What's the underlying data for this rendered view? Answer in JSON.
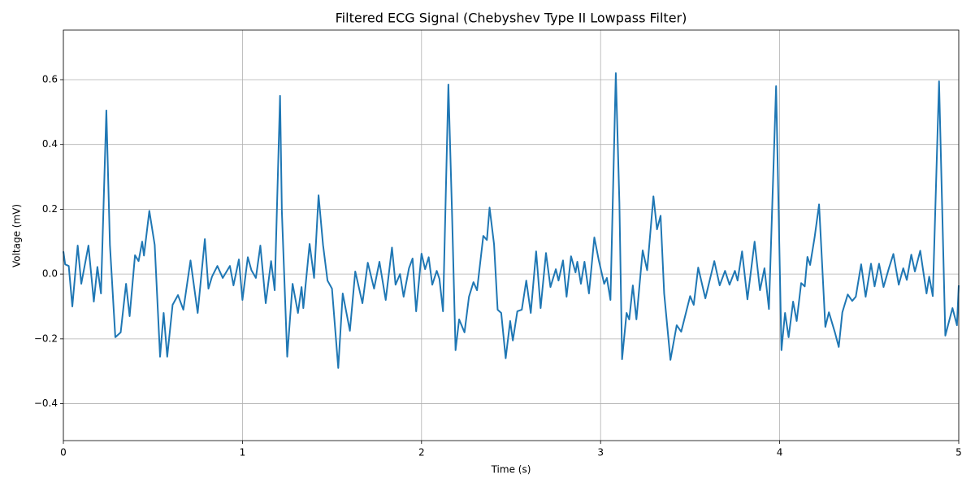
{
  "chart_data": {
    "type": "line",
    "title": "Filtered ECG Signal (Chebyshev Type II Lowpass Filter)",
    "x_label": "Time (s)",
    "y_label": "Voltage (mV)",
    "color": "#1f77b4",
    "grid": true,
    "xlim": [
      0,
      5
    ],
    "ylim": [
      -0.514,
      0.753
    ],
    "xticks": [
      0,
      1,
      2,
      3,
      4,
      5
    ],
    "yticks": [
      {
        "value": -0.4,
        "label": "−0.4"
      },
      {
        "value": -0.2,
        "label": "−0.2"
      },
      {
        "value": 0,
        "label": "0.0"
      },
      0.2,
      0.4,
      0.6
    ],
    "x": [
      0,
      0.01,
      0.03,
      0.05,
      0.08,
      0.1,
      0.14,
      0.17,
      0.19,
      0.21,
      0.24,
      0.26,
      0.29,
      0.32,
      0.35,
      0.37,
      0.4,
      0.42,
      0.44,
      0.45,
      0.48,
      0.51,
      0.54,
      0.56,
      0.58,
      0.61,
      0.64,
      0.67,
      0.71,
      0.75,
      0.79,
      0.81,
      0.83,
      0.86,
      0.89,
      0.93,
      0.95,
      0.98,
      1.0,
      1.03,
      1.05,
      1.075,
      1.1,
      1.13,
      1.16,
      1.18,
      1.21,
      1.22,
      1.25,
      1.28,
      1.31,
      1.33,
      1.34,
      1.375,
      1.4,
      1.425,
      1.45,
      1.475,
      1.5,
      1.535,
      1.56,
      1.6,
      1.63,
      1.67,
      1.7,
      1.735,
      1.765,
      1.8,
      1.835,
      1.855,
      1.88,
      1.9,
      1.93,
      1.95,
      1.97,
      2.0,
      2.02,
      2.04,
      2.06,
      2.085,
      2.1,
      2.12,
      2.15,
      2.17,
      2.19,
      2.21,
      2.24,
      2.265,
      2.29,
      2.31,
      2.345,
      2.365,
      2.38,
      2.405,
      2.425,
      2.445,
      2.47,
      2.495,
      2.51,
      2.535,
      2.56,
      2.585,
      2.61,
      2.64,
      2.665,
      2.695,
      2.72,
      2.75,
      2.765,
      2.79,
      2.81,
      2.835,
      2.86,
      2.87,
      2.89,
      2.91,
      2.935,
      2.965,
      2.99,
      3.02,
      3.035,
      3.055,
      3.085,
      3.105,
      3.12,
      3.145,
      3.16,
      3.18,
      3.2,
      3.235,
      3.26,
      3.295,
      3.315,
      3.335,
      3.355,
      3.39,
      3.425,
      3.45,
      3.5,
      3.52,
      3.545,
      3.585,
      3.635,
      3.665,
      3.695,
      3.72,
      3.75,
      3.765,
      3.79,
      3.82,
      3.86,
      3.89,
      3.915,
      3.94,
      3.98,
      4.01,
      4.03,
      4.05,
      4.075,
      4.095,
      4.12,
      4.14,
      4.155,
      4.17,
      4.195,
      4.22,
      4.255,
      4.275,
      4.31,
      4.33,
      4.35,
      4.38,
      4.405,
      4.425,
      4.455,
      4.48,
      4.51,
      4.53,
      4.555,
      4.58,
      4.61,
      4.635,
      4.665,
      4.69,
      4.71,
      4.735,
      4.755,
      4.785,
      4.82,
      4.835,
      4.855,
      4.89,
      4.925,
      4.965,
      4.99,
      5.0
    ],
    "values": [
      0.07,
      0.03,
      0.025,
      -0.1,
      0.088,
      -0.03,
      0.088,
      -0.085,
      0.022,
      -0.06,
      0.505,
      0.09,
      -0.195,
      -0.18,
      -0.03,
      -0.13,
      0.058,
      0.04,
      0.1,
      0.057,
      0.195,
      0.09,
      -0.255,
      -0.12,
      -0.255,
      -0.095,
      -0.065,
      -0.11,
      0.042,
      -0.12,
      0.108,
      -0.045,
      -0.008,
      0.025,
      -0.012,
      0.025,
      -0.035,
      0.045,
      -0.08,
      0.052,
      0.012,
      -0.012,
      0.088,
      -0.09,
      0.04,
      -0.05,
      0.55,
      0.195,
      -0.255,
      -0.03,
      -0.12,
      -0.04,
      -0.105,
      0.093,
      -0.012,
      0.243,
      0.09,
      -0.02,
      -0.045,
      -0.29,
      -0.06,
      -0.175,
      0.008,
      -0.09,
      0.035,
      -0.045,
      0.038,
      -0.08,
      0.082,
      -0.033,
      0.0,
      -0.07,
      0.018,
      0.048,
      -0.115,
      0.063,
      0.015,
      0.052,
      -0.033,
      0.01,
      -0.015,
      -0.115,
      0.585,
      0.195,
      -0.235,
      -0.14,
      -0.18,
      -0.07,
      -0.025,
      -0.05,
      0.118,
      0.105,
      0.205,
      0.092,
      -0.11,
      -0.12,
      -0.26,
      -0.145,
      -0.205,
      -0.115,
      -0.11,
      -0.02,
      -0.12,
      0.07,
      -0.105,
      0.065,
      -0.04,
      0.015,
      -0.02,
      0.042,
      -0.07,
      0.055,
      0.005,
      0.038,
      -0.03,
      0.038,
      -0.06,
      0.113,
      0.042,
      -0.03,
      -0.012,
      -0.08,
      0.62,
      0.22,
      -0.263,
      -0.12,
      -0.14,
      -0.035,
      -0.14,
      0.073,
      0.012,
      0.24,
      0.138,
      0.18,
      -0.06,
      -0.265,
      -0.158,
      -0.178,
      -0.068,
      -0.095,
      0.02,
      -0.075,
      0.04,
      -0.035,
      0.01,
      -0.033,
      0.01,
      -0.02,
      0.07,
      -0.078,
      0.1,
      -0.05,
      0.018,
      -0.108,
      0.58,
      -0.235,
      -0.12,
      -0.195,
      -0.085,
      -0.145,
      -0.028,
      -0.038,
      0.053,
      0.028,
      0.113,
      0.215,
      -0.163,
      -0.118,
      -0.183,
      -0.225,
      -0.118,
      -0.063,
      -0.083,
      -0.07,
      0.03,
      -0.07,
      0.032,
      -0.038,
      0.032,
      -0.04,
      0.018,
      0.062,
      -0.033,
      0.018,
      -0.018,
      0.06,
      0.008,
      0.072,
      -0.06,
      -0.008,
      -0.068,
      0.595,
      -0.19,
      -0.105,
      -0.158,
      -0.035
    ]
  }
}
